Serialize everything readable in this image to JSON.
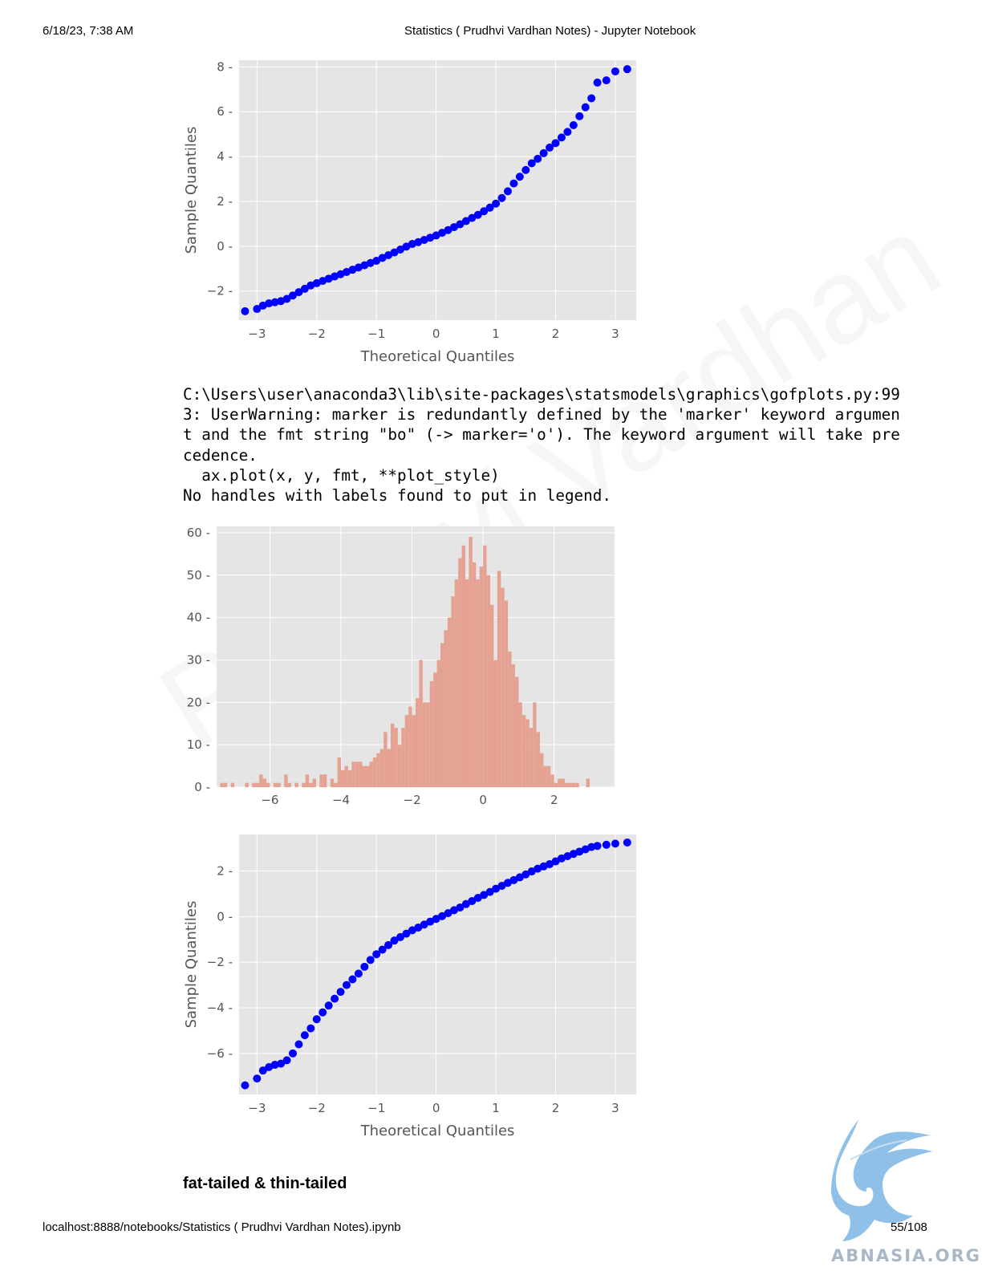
{
  "header": {
    "datetime": "6/18/23, 7:38 AM",
    "title": "Statistics ( Prudhvi Vardhan Notes) - Jupyter Notebook"
  },
  "footer": {
    "url": "localhost:8888/notebooks/Statistics ( Prudhvi Vardhan Notes).ipynb",
    "page": "55/108"
  },
  "output_text": {
    "lines": [
      "C:\\Users\\user\\anaconda3\\lib\\site-packages\\statsmodels\\graphics\\gofplots.py:99",
      "3: UserWarning: marker is redundantly defined by the 'marker' keyword argumen",
      "t and the fmt string \"bo\" (-> marker='o'). The keyword argument will take pre",
      "cedence.",
      "  ax.plot(x, y, fmt, **plot_style)",
      "No handles with labels found to put in legend."
    ]
  },
  "section_heading": "fat-tailed & thin-tailed",
  "watermark": "Prudhvi Vardhan",
  "logo_text": "ABNASIA.ORG",
  "colors": {
    "plot_bg": "#e5e5e5",
    "grid": "#ffffff",
    "points": "#0000ff",
    "hist": "#e5a292",
    "tick_text": "#555555"
  },
  "chart_data": [
    {
      "type": "scatter",
      "title": "",
      "xlabel": "Theoretical Quantiles",
      "ylabel": "Sample Quantiles",
      "xlim": [
        -3.3,
        3.35
      ],
      "ylim": [
        -3.3,
        8.3
      ],
      "xticks": [
        -3,
        -2,
        -1,
        0,
        1,
        2,
        3
      ],
      "xtick_labels": [
        "−3",
        "−2",
        "−1",
        "0",
        "1",
        "2",
        "3"
      ],
      "yticks": [
        -2,
        0,
        2,
        4,
        6,
        8
      ],
      "ytick_labels": [
        "−2",
        "0",
        "2",
        "4",
        "6",
        "8"
      ],
      "grid": true,
      "series": [
        {
          "marker": "o",
          "color": "#0000ff",
          "x": [
            -3.2,
            -3.0,
            -2.9,
            -2.8,
            -2.7,
            -2.6,
            -2.5,
            -2.4,
            -2.3,
            -2.2,
            -2.1,
            -2.0,
            -1.9,
            -1.8,
            -1.7,
            -1.6,
            -1.5,
            -1.4,
            -1.3,
            -1.2,
            -1.1,
            -1.0,
            -0.9,
            -0.8,
            -0.7,
            -0.6,
            -0.5,
            -0.4,
            -0.3,
            -0.2,
            -0.1,
            0.0,
            0.1,
            0.2,
            0.3,
            0.4,
            0.5,
            0.6,
            0.7,
            0.8,
            0.9,
            1.0,
            1.1,
            1.2,
            1.3,
            1.4,
            1.5,
            1.6,
            1.7,
            1.8,
            1.9,
            2.0,
            2.1,
            2.2,
            2.3,
            2.4,
            2.5,
            2.6,
            2.7,
            2.85,
            3.0,
            3.2
          ],
          "y": [
            -2.9,
            -2.8,
            -2.65,
            -2.55,
            -2.5,
            -2.45,
            -2.35,
            -2.2,
            -2.05,
            -1.9,
            -1.75,
            -1.65,
            -1.55,
            -1.45,
            -1.35,
            -1.25,
            -1.15,
            -1.05,
            -0.95,
            -0.85,
            -0.75,
            -0.65,
            -0.52,
            -0.4,
            -0.28,
            -0.15,
            -0.02,
            0.1,
            0.18,
            0.28,
            0.38,
            0.48,
            0.6,
            0.72,
            0.85,
            0.98,
            1.12,
            1.26,
            1.4,
            1.56,
            1.72,
            1.9,
            2.15,
            2.45,
            2.8,
            3.1,
            3.4,
            3.7,
            3.9,
            4.15,
            4.4,
            4.6,
            4.85,
            5.1,
            5.4,
            5.8,
            6.2,
            6.6,
            7.3,
            7.4,
            7.8,
            7.9
          ]
        }
      ]
    },
    {
      "type": "bar",
      "title": "",
      "xlabel": "",
      "ylabel": "",
      "xlim": [
        -7.5,
        3.7
      ],
      "ylim": [
        0,
        61.5
      ],
      "xticks": [
        -6,
        -4,
        -2,
        0,
        2
      ],
      "xtick_labels": [
        "−6",
        "−4",
        "−2",
        "0",
        "2"
      ],
      "yticks": [
        0,
        10,
        20,
        30,
        40,
        50,
        60
      ],
      "ytick_labels": [
        "0",
        "10",
        "20",
        "30",
        "40",
        "50",
        "60"
      ],
      "grid": true,
      "color": "#e5a292",
      "bin_start": -7.4,
      "bin_width": 0.1,
      "counts": [
        1,
        1,
        0,
        1,
        0,
        0,
        0,
        1,
        0,
        1,
        1,
        3,
        2,
        1,
        0,
        1,
        1,
        0,
        3,
        1,
        0,
        1,
        0,
        1,
        3,
        1,
        2,
        0,
        3,
        3,
        0,
        2,
        1,
        7,
        4,
        5,
        4,
        6,
        6,
        6,
        5,
        5,
        6,
        7,
        8,
        9,
        13,
        9,
        15,
        14,
        10,
        14,
        17,
        19,
        17,
        21,
        30,
        20,
        20,
        25,
        27,
        30,
        34,
        37,
        40,
        45,
        49,
        54,
        57,
        49,
        59,
        53,
        49,
        52,
        57,
        50,
        43,
        30,
        51,
        47,
        44,
        32,
        29,
        26,
        20,
        17,
        16,
        14,
        20,
        13,
        8,
        5,
        5,
        3,
        1,
        2,
        2,
        1,
        1,
        1,
        1,
        0,
        0,
        2
      ]
    },
    {
      "type": "scatter",
      "title": "",
      "xlabel": "Theoretical Quantiles",
      "ylabel": "Sample Quantiles",
      "xlim": [
        -3.3,
        3.35
      ],
      "ylim": [
        -7.8,
        3.6
      ],
      "xticks": [
        -3,
        -2,
        -1,
        0,
        1,
        2,
        3
      ],
      "xtick_labels": [
        "−3",
        "−2",
        "−1",
        "0",
        "1",
        "2",
        "3"
      ],
      "yticks": [
        -6,
        -4,
        -2,
        0,
        2
      ],
      "ytick_labels": [
        "−6",
        "−4",
        "−2",
        "0",
        "2"
      ],
      "grid": true,
      "series": [
        {
          "marker": "o",
          "color": "#0000ff",
          "x": [
            -3.2,
            -3.0,
            -2.9,
            -2.8,
            -2.7,
            -2.6,
            -2.5,
            -2.4,
            -2.3,
            -2.2,
            -2.1,
            -2.0,
            -1.9,
            -1.8,
            -1.7,
            -1.6,
            -1.5,
            -1.4,
            -1.3,
            -1.2,
            -1.1,
            -1.0,
            -0.9,
            -0.8,
            -0.7,
            -0.6,
            -0.5,
            -0.4,
            -0.3,
            -0.2,
            -0.1,
            0.0,
            0.1,
            0.2,
            0.3,
            0.4,
            0.5,
            0.6,
            0.7,
            0.8,
            0.9,
            1.0,
            1.1,
            1.2,
            1.3,
            1.4,
            1.5,
            1.6,
            1.7,
            1.8,
            1.9,
            2.0,
            2.1,
            2.2,
            2.3,
            2.4,
            2.5,
            2.6,
            2.7,
            2.85,
            3.0,
            3.2
          ],
          "y": [
            -7.4,
            -7.1,
            -6.75,
            -6.6,
            -6.5,
            -6.45,
            -6.3,
            -6.0,
            -5.6,
            -5.2,
            -4.9,
            -4.5,
            -4.2,
            -3.9,
            -3.6,
            -3.3,
            -3.0,
            -2.75,
            -2.5,
            -2.2,
            -1.9,
            -1.65,
            -1.45,
            -1.25,
            -1.05,
            -0.9,
            -0.75,
            -0.6,
            -0.48,
            -0.35,
            -0.22,
            -0.1,
            0.02,
            0.15,
            0.28,
            0.4,
            0.55,
            0.68,
            0.82,
            0.95,
            1.08,
            1.22,
            1.35,
            1.48,
            1.6,
            1.72,
            1.85,
            1.98,
            2.1,
            2.2,
            2.3,
            2.42,
            2.55,
            2.65,
            2.75,
            2.85,
            2.95,
            3.05,
            3.1,
            3.15,
            3.2,
            3.25
          ]
        }
      ]
    }
  ]
}
